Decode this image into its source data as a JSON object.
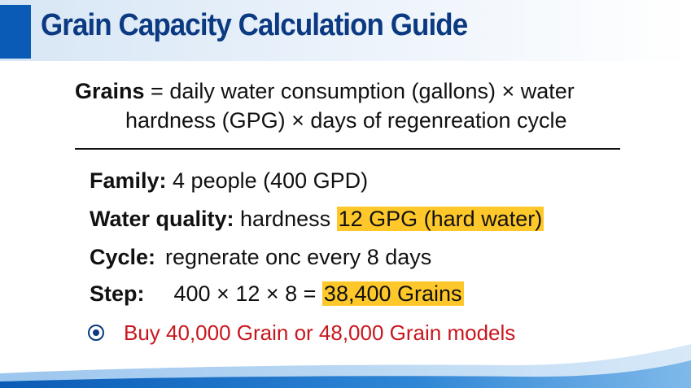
{
  "header": {
    "title": "Grain Capacity Calculation Guide"
  },
  "formula": {
    "term": "Grains",
    "line1": " = daily water consumption (gallons) × water",
    "line2": "hardness (GPG) × days of regenreation cycle"
  },
  "rows": {
    "family": {
      "label": "Family:",
      "value": " 4 people (400 GPD)"
    },
    "quality": {
      "label": "Water quality:",
      "value": " hardness ",
      "highlight": "12 GPG (hard water)"
    },
    "cycle": {
      "label": "Cycle:",
      "value": "regnerate onc every 8 days"
    },
    "step": {
      "label": "Step:",
      "value": "400 × 12 × 8 = ",
      "highlight": "38,400 Grains"
    }
  },
  "recommendation": {
    "text": "Buy 40,000 Grain or 48,000 Grain models",
    "icon": "target-bullet-icon"
  },
  "colors": {
    "title": "#0b3a82",
    "accent": "#0a5bb5",
    "highlight": "#ffc82a",
    "recommendation": "#c8161d"
  }
}
